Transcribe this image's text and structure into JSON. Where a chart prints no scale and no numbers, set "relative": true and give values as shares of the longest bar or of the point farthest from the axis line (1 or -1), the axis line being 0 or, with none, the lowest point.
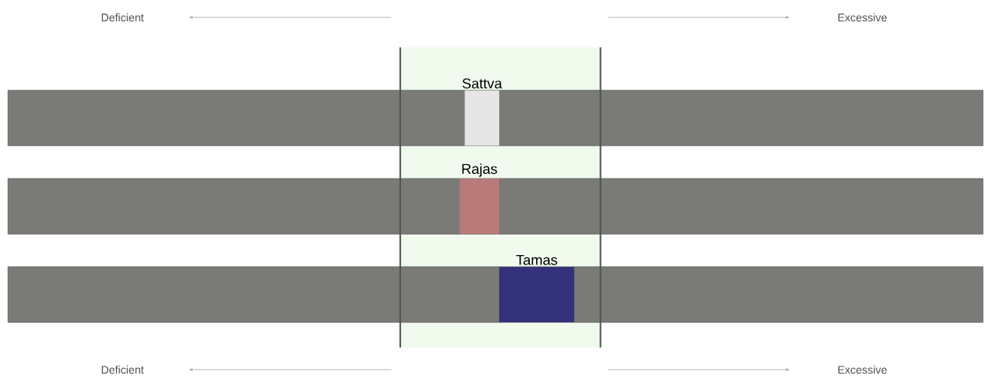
{
  "chart_data": {
    "type": "bar",
    "orientation": "horizontal",
    "relative": true,
    "categories": [
      "Sattva",
      "Rajas",
      "Tamas"
    ],
    "values": [
      -0.46,
      -0.53,
      1
    ],
    "colors": [
      "#e6e6e6",
      "#b97a7a",
      "#33317a"
    ],
    "bands": [
      {
        "axis": "x",
        "from": -1.32,
        "to": 1.35,
        "color": "#f0fbee"
      }
    ],
    "annotations": [
      "Deficient",
      "Excessive",
      "Deficient",
      "Excessive"
    ]
  }
}
